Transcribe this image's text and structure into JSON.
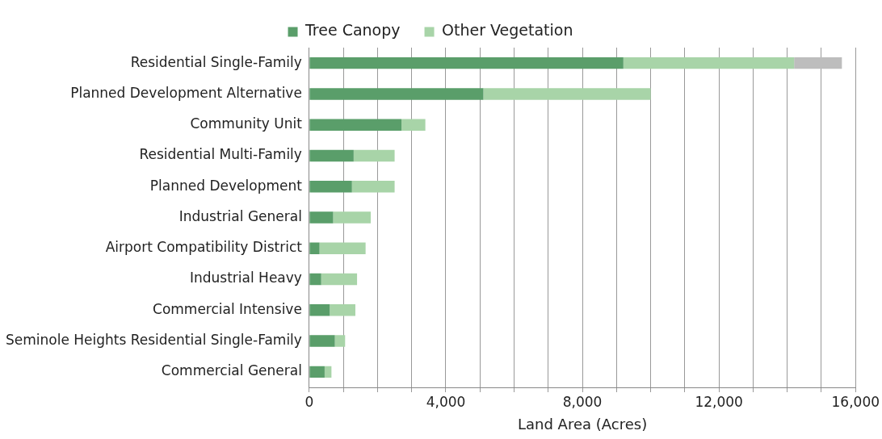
{
  "chart_data": {
    "type": "bar",
    "orientation": "horizontal",
    "stacked": true,
    "xlabel": "Land Area (Acres)",
    "categories": [
      "Residential Single-Family",
      "Planned Development Alternative",
      "Community Unit",
      "Residential Multi-Family",
      "Planned Development",
      "Industrial General",
      "Airport Compatibility District",
      "Industrial Heavy",
      "Commercial Intensive",
      "Seminole Heights Residential Single-Family",
      "Commercial General"
    ],
    "series": [
      {
        "name": "Tree Canopy",
        "color": "#5a9e6a",
        "values": [
          9200,
          5100,
          2700,
          1300,
          1250,
          700,
          300,
          350,
          600,
          750,
          450
        ]
      },
      {
        "name": "Other Vegetation",
        "color": "#a8d4a8",
        "values": [
          5000,
          4900,
          700,
          1200,
          1250,
          1100,
          1350,
          1050,
          750,
          300,
          200
        ]
      },
      {
        "color": "#bdbdbd",
        "values": [
          1400,
          null,
          null,
          null,
          null,
          null,
          null,
          null,
          null,
          null,
          null
        ]
      }
    ],
    "xlim": [
      0,
      16000
    ],
    "xticks": [
      {
        "value": 0,
        "label": "0"
      },
      {
        "value": 1000,
        "label": null
      },
      {
        "value": 2000,
        "label": null
      },
      {
        "value": 3000,
        "label": null
      },
      {
        "value": 4000,
        "label": "4,000"
      },
      {
        "value": 5000,
        "label": null
      },
      {
        "value": 6000,
        "label": null
      },
      {
        "value": 7000,
        "label": null
      },
      {
        "value": 8000,
        "label": "8,000"
      },
      {
        "value": 9000,
        "label": null
      },
      {
        "value": 10000,
        "label": null
      },
      {
        "value": 11000,
        "label": null
      },
      {
        "value": 12000,
        "label": "12,000"
      },
      {
        "value": 13000,
        "label": null
      },
      {
        "value": 14000,
        "label": null
      },
      {
        "value": 15000,
        "label": null
      },
      {
        "value": 16000,
        "label": "16,000"
      }
    ],
    "grid": "x",
    "legend": "top"
  }
}
